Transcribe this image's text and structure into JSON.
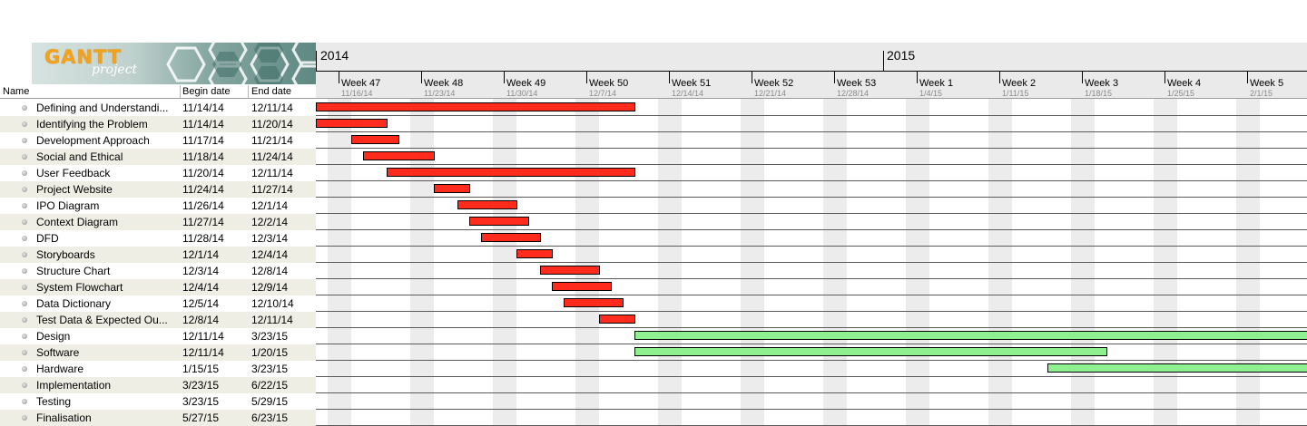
{
  "logo": {
    "title": "GANTT",
    "subtitle": "project"
  },
  "columns": {
    "name": "Name",
    "begin": "Begin date",
    "end": "End date"
  },
  "timeline": {
    "years": [
      "2014",
      "2015"
    ],
    "weeks": [
      {
        "label": "Week 47",
        "date": "11/16/14"
      },
      {
        "label": "Week 48",
        "date": "11/23/14"
      },
      {
        "label": "Week 49",
        "date": "11/30/14"
      },
      {
        "label": "Week 50",
        "date": "12/7/14"
      },
      {
        "label": "Week 51",
        "date": "12/14/14"
      },
      {
        "label": "Week 52",
        "date": "12/21/14"
      },
      {
        "label": "Week 53",
        "date": "12/28/14"
      },
      {
        "label": "Week 1",
        "date": "1/4/15"
      },
      {
        "label": "Week 2",
        "date": "1/11/15"
      },
      {
        "label": "Week 3",
        "date": "1/18/15"
      },
      {
        "label": "Week 4",
        "date": "1/25/15"
      },
      {
        "label": "Week 5",
        "date": "2/1/15"
      }
    ]
  },
  "colors": {
    "task_bar": "#ff2b1c",
    "phase_bar": "#8ef08e"
  },
  "tasks": [
    {
      "name": "Defining and Understandi...",
      "begin": "11/14/14",
      "end": "12/11/14"
    },
    {
      "name": "Identifying the Problem",
      "begin": "11/14/14",
      "end": "11/20/14"
    },
    {
      "name": "Development Approach",
      "begin": "11/17/14",
      "end": "11/21/14"
    },
    {
      "name": "Social and Ethical",
      "begin": "11/18/14",
      "end": "11/24/14"
    },
    {
      "name": "User Feedback",
      "begin": "11/20/14",
      "end": "12/11/14"
    },
    {
      "name": "Project Website",
      "begin": "11/24/14",
      "end": "11/27/14"
    },
    {
      "name": "IPO Diagram",
      "begin": "11/26/14",
      "end": "12/1/14"
    },
    {
      "name": "Context Diagram",
      "begin": "11/27/14",
      "end": "12/2/14"
    },
    {
      "name": "DFD",
      "begin": "11/28/14",
      "end": "12/3/14"
    },
    {
      "name": "Storyboards",
      "begin": "12/1/14",
      "end": "12/4/14"
    },
    {
      "name": "Structure Chart",
      "begin": "12/3/14",
      "end": "12/8/14"
    },
    {
      "name": "System Flowchart",
      "begin": "12/4/14",
      "end": "12/9/14"
    },
    {
      "name": "Data Dictionary",
      "begin": "12/5/14",
      "end": "12/10/14"
    },
    {
      "name": "Test Data & Expected Ou...",
      "begin": "12/8/14",
      "end": "12/11/14"
    },
    {
      "name": "Design",
      "begin": "12/11/14",
      "end": "3/23/15"
    },
    {
      "name": "Software",
      "begin": "12/11/14",
      "end": "1/20/15"
    },
    {
      "name": "Hardware",
      "begin": "1/15/15",
      "end": "3/23/15"
    },
    {
      "name": "Implementation",
      "begin": "3/23/15",
      "end": "6/22/15"
    },
    {
      "name": "Testing",
      "begin": "3/23/15",
      "end": "5/29/15"
    },
    {
      "name": "Finalisation",
      "begin": "5/27/15",
      "end": "6/23/15"
    }
  ]
}
